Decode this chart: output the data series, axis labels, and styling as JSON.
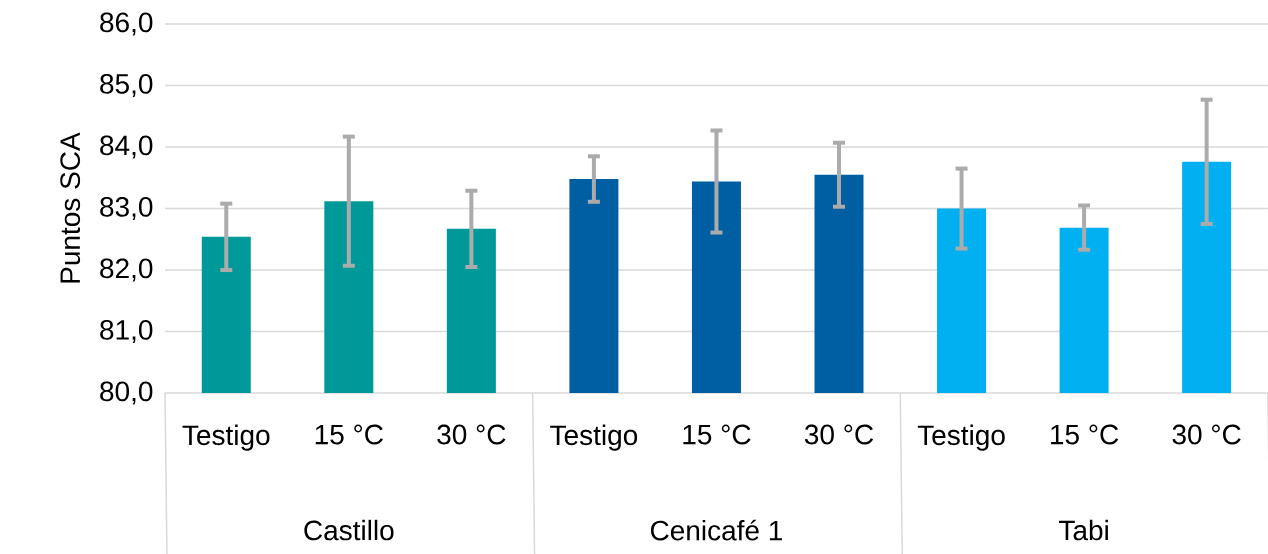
{
  "chart_data": {
    "type": "bar",
    "ylabel": "Puntos SCA",
    "categories": [
      "Testigo",
      "15 °C",
      "30 °C",
      "Testigo",
      "15 °C",
      "30 °C",
      "Testigo",
      "15 °C",
      "30 °C"
    ],
    "values": [
      82.54,
      83.12,
      82.67,
      83.48,
      83.44,
      83.55,
      83.0,
      82.69,
      83.76
    ],
    "errors": [
      0.54,
      1.05,
      0.62,
      0.37,
      0.83,
      0.52,
      0.65,
      0.36,
      1.01
    ],
    "colors": [
      "#009999",
      "#009999",
      "#009999",
      "#005ea2",
      "#005ea2",
      "#005ea2",
      "#00b0f0",
      "#00b0f0",
      "#00b0f0"
    ],
    "ylim": [
      80,
      86
    ],
    "yticks": [
      {
        "value": 80,
        "label": "80,0"
      },
      {
        "value": 81,
        "label": "81,0"
      },
      {
        "value": 82,
        "label": "82,0"
      },
      {
        "value": 83,
        "label": "83,0"
      },
      {
        "value": 84,
        "label": "84,0"
      },
      {
        "value": 85,
        "label": "85,0"
      },
      {
        "value": 86,
        "label": "86,0"
      }
    ],
    "grid": "y",
    "annotations": [
      "Castillo",
      "Cenicafé 1",
      "Tabi"
    ]
  }
}
